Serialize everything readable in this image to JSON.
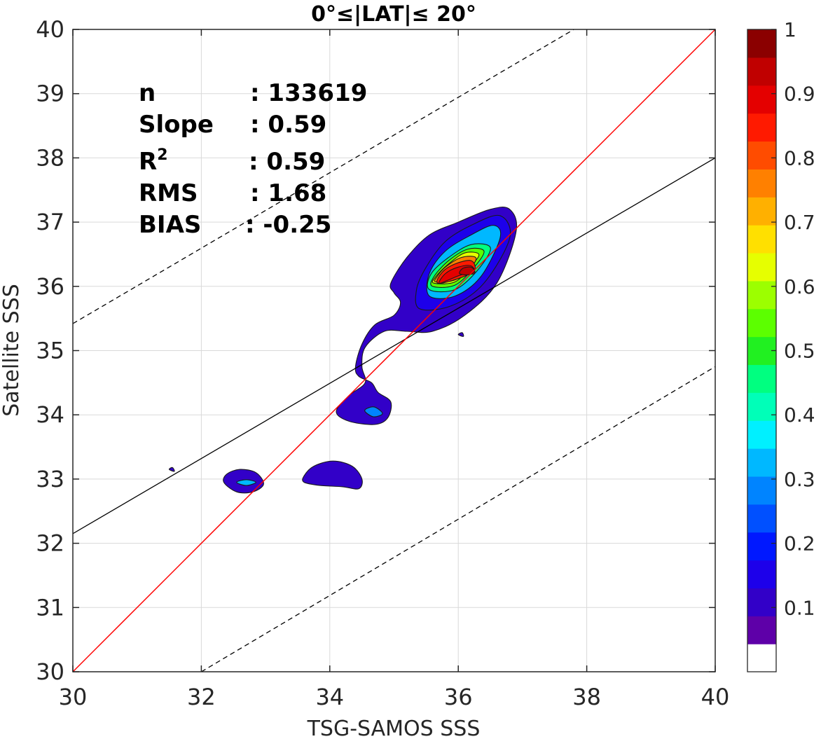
{
  "chart_data": {
    "type": "contour",
    "title": "0°≤|LAT|≤ 20°",
    "xlabel": "TSG-SAMOS SSS",
    "ylabel": "Satellite SSS",
    "xlim": [
      30,
      40
    ],
    "ylim": [
      30,
      40
    ],
    "xticks": [
      30,
      32,
      34,
      36,
      38,
      40
    ],
    "yticks": [
      30,
      31,
      32,
      33,
      34,
      35,
      36,
      37,
      38,
      39,
      40
    ],
    "grid": true,
    "stats": {
      "n_label": "n",
      "n_value": ": 133619",
      "slope_label": "Slope",
      "slope_value": ": 0.59",
      "r2_label": "R",
      "r2_sup": "2",
      "r2_value": ": 0.59",
      "rms_label": "RMS",
      "rms_value": ": 1.68",
      "bias_label": "BIAS",
      "bias_value": ": -0.25"
    },
    "lines": {
      "one_to_one": {
        "x": [
          30,
          40
        ],
        "y": [
          30,
          40
        ],
        "color": "#ff0000"
      },
      "fit": {
        "x": [
          30,
          40
        ],
        "y": [
          32.15,
          38.0
        ],
        "color": "#000000"
      },
      "upper_dashed": {
        "x": [
          30,
          37.8
        ],
        "y": [
          35.42,
          40
        ],
        "color": "#000000"
      },
      "lower_dashed": {
        "x": [
          32.0,
          40
        ],
        "y": [
          30,
          34.75
        ],
        "color": "#000000"
      }
    },
    "contours": [
      {
        "level": 0.05,
        "points": [
          [
            35.6,
            35.3
          ],
          [
            36.1,
            35.55
          ],
          [
            36.6,
            36.05
          ],
          [
            36.9,
            36.85
          ],
          [
            36.8,
            37.2
          ],
          [
            36.5,
            37.2
          ],
          [
            36.0,
            37.0
          ],
          [
            35.55,
            36.8
          ],
          [
            35.2,
            36.45
          ],
          [
            34.95,
            36.05
          ],
          [
            35.0,
            35.9
          ],
          [
            35.1,
            35.75
          ],
          [
            35.0,
            35.55
          ],
          [
            34.7,
            35.4
          ],
          [
            34.5,
            35.1
          ],
          [
            34.4,
            34.75
          ],
          [
            34.45,
            34.6
          ],
          [
            34.65,
            34.5
          ],
          [
            34.75,
            34.35
          ],
          [
            34.95,
            34.2
          ],
          [
            34.9,
            33.95
          ],
          [
            34.7,
            33.85
          ],
          [
            34.3,
            33.9
          ],
          [
            34.1,
            34.05
          ],
          [
            34.3,
            34.3
          ],
          [
            34.55,
            34.5
          ],
          [
            34.5,
            34.75
          ],
          [
            34.55,
            35.05
          ],
          [
            34.85,
            35.3
          ],
          [
            35.2,
            35.3
          ]
        ]
      },
      {
        "level": 0.05,
        "points": [
          [
            32.35,
            32.95
          ],
          [
            32.55,
            32.8
          ],
          [
            32.8,
            32.8
          ],
          [
            32.97,
            32.92
          ],
          [
            32.85,
            33.1
          ],
          [
            32.6,
            33.15
          ],
          [
            32.4,
            33.08
          ]
        ]
      },
      {
        "level": 0.05,
        "points": [
          [
            33.6,
            32.95
          ],
          [
            33.85,
            32.9
          ],
          [
            34.2,
            32.88
          ],
          [
            34.45,
            32.85
          ],
          [
            34.5,
            33.0
          ],
          [
            34.35,
            33.2
          ],
          [
            34.05,
            33.28
          ],
          [
            33.75,
            33.2
          ],
          [
            33.6,
            33.05
          ]
        ]
      },
      {
        "level": 0.05,
        "points": [
          [
            31.5,
            33.15
          ],
          [
            31.58,
            33.12
          ],
          [
            31.55,
            33.18
          ]
        ]
      },
      {
        "level": 0.05,
        "points": [
          [
            36.0,
            35.25
          ],
          [
            36.08,
            35.22
          ],
          [
            36.06,
            35.28
          ]
        ]
      },
      {
        "level": 0.1,
        "points": [
          [
            35.4,
            35.65
          ],
          [
            35.9,
            35.7
          ],
          [
            36.4,
            36.05
          ],
          [
            36.8,
            36.75
          ],
          [
            36.65,
            37.1
          ],
          [
            36.2,
            36.95
          ],
          [
            35.8,
            36.7
          ],
          [
            35.5,
            36.3
          ],
          [
            35.35,
            35.95
          ]
        ]
      },
      {
        "level": 0.25,
        "points": [
          [
            34.55,
            34.05
          ],
          [
            34.68,
            33.97
          ],
          [
            34.82,
            34.02
          ],
          [
            34.7,
            34.12
          ],
          [
            34.58,
            34.1
          ]
        ]
      },
      {
        "level": 0.3,
        "points": [
          [
            32.55,
            32.95
          ],
          [
            32.7,
            32.9
          ],
          [
            32.85,
            32.95
          ],
          [
            32.7,
            32.99
          ]
        ]
      },
      {
        "level": 0.3,
        "points": [
          [
            35.55,
            35.85
          ],
          [
            35.95,
            35.85
          ],
          [
            36.35,
            36.15
          ],
          [
            36.65,
            36.75
          ],
          [
            36.55,
            36.95
          ],
          [
            36.2,
            36.8
          ],
          [
            35.8,
            36.55
          ],
          [
            35.55,
            36.2
          ]
        ]
      },
      {
        "level": 0.4,
        "points": [
          [
            35.55,
            35.95
          ],
          [
            35.95,
            35.95
          ],
          [
            36.3,
            36.25
          ],
          [
            36.5,
            36.6
          ],
          [
            36.2,
            36.65
          ],
          [
            35.85,
            36.45
          ],
          [
            35.58,
            36.2
          ]
        ]
      },
      {
        "level": 0.5,
        "points": [
          [
            35.6,
            36.0
          ],
          [
            35.95,
            36.02
          ],
          [
            36.25,
            36.3
          ],
          [
            36.4,
            36.55
          ],
          [
            36.15,
            36.58
          ],
          [
            35.85,
            36.4
          ],
          [
            35.62,
            36.15
          ]
        ]
      },
      {
        "level": 0.6,
        "points": [
          [
            35.62,
            36.05
          ],
          [
            35.95,
            36.07
          ],
          [
            36.2,
            36.32
          ],
          [
            36.32,
            36.5
          ],
          [
            36.1,
            36.52
          ],
          [
            35.85,
            36.35
          ],
          [
            35.65,
            36.15
          ]
        ]
      },
      {
        "level": 0.7,
        "points": [
          [
            35.65,
            36.07
          ],
          [
            35.95,
            36.1
          ],
          [
            36.2,
            36.3
          ],
          [
            36.27,
            36.45
          ],
          [
            36.05,
            36.45
          ],
          [
            35.8,
            36.3
          ],
          [
            35.67,
            36.15
          ]
        ]
      },
      {
        "level": 0.8,
        "points": [
          [
            35.68,
            36.05
          ],
          [
            36.0,
            36.12
          ],
          [
            36.25,
            36.25
          ],
          [
            36.2,
            36.4
          ],
          [
            35.95,
            36.35
          ],
          [
            35.75,
            36.22
          ]
        ]
      },
      {
        "level": 0.85,
        "points": [
          [
            35.7,
            36.05
          ],
          [
            35.85,
            36.1
          ],
          [
            36.05,
            36.18
          ],
          [
            36.25,
            36.2
          ],
          [
            36.2,
            36.32
          ],
          [
            36.0,
            36.3
          ],
          [
            35.8,
            36.2
          ]
        ]
      },
      {
        "level": 0.9,
        "points": [
          [
            36.02,
            36.2
          ],
          [
            36.15,
            36.18
          ],
          [
            36.25,
            36.23
          ],
          [
            36.2,
            36.3
          ],
          [
            36.07,
            36.28
          ]
        ]
      }
    ],
    "colorbar": {
      "min": 0,
      "max": 1,
      "ticks": [
        0.1,
        0.2,
        0.3,
        0.4,
        0.5,
        0.6,
        0.7,
        0.8,
        0.9,
        1
      ],
      "tick_labels": [
        "0.1",
        "0.2",
        "0.3",
        "0.4",
        "0.5",
        "0.6",
        "0.7",
        "0.8",
        "0.9",
        "1"
      ],
      "colors": [
        "#ffffff",
        "#5e00a8",
        "#3200c8",
        "#1d00ea",
        "#0018ff",
        "#0050ff",
        "#0084ff",
        "#00b8ff",
        "#00f0ff",
        "#00ffb8",
        "#00ff80",
        "#21f021",
        "#5cff00",
        "#9cff00",
        "#e6ff00",
        "#ffe000",
        "#ffb000",
        "#ff8000",
        "#ff4c00",
        "#ff1a00",
        "#e40000",
        "#c00000",
        "#8b0000"
      ]
    }
  }
}
